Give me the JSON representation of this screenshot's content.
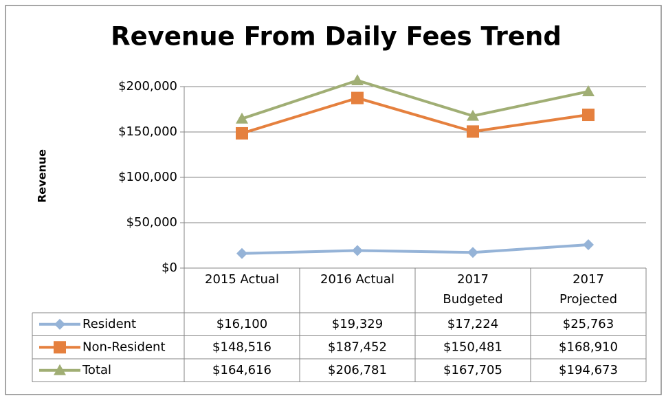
{
  "chart_data": {
    "type": "line",
    "title": "Revenue From Daily Fees Trend",
    "y_label": "Revenue",
    "categories": [
      "2015 Actual",
      "2016 Actual",
      "2017 Budgeted",
      "2017 Projected"
    ],
    "series": [
      {
        "name": "Resident",
        "color": "#95b3d7",
        "marker": "diamond",
        "values": [
          16100,
          19329,
          17224,
          25763
        ],
        "value_labels": [
          "$16,100",
          "$19,329",
          "$17,224",
          "$25,763"
        ]
      },
      {
        "name": "Non-Resident",
        "color": "#e5803e",
        "marker": "square",
        "values": [
          148516,
          187452,
          150481,
          168910
        ],
        "value_labels": [
          "$148,516",
          "$187,452",
          "$150,481",
          "$168,910"
        ]
      },
      {
        "name": "Total",
        "color": "#a0ae74",
        "marker": "triangle",
        "values": [
          164616,
          206781,
          167705,
          194673
        ],
        "value_labels": [
          "$164,616",
          "$206,781",
          "$167,705",
          "$194,673"
        ]
      }
    ],
    "ylim": [
      0,
      200000
    ],
    "yticks": [
      {
        "value": 0,
        "label": "$0"
      },
      {
        "value": 50000,
        "label": "$50,000"
      },
      {
        "value": 100000,
        "label": "$100,000"
      },
      {
        "value": 150000,
        "label": "$150,000"
      },
      {
        "value": 200000,
        "label": "$200,000"
      }
    ],
    "grid": true
  }
}
